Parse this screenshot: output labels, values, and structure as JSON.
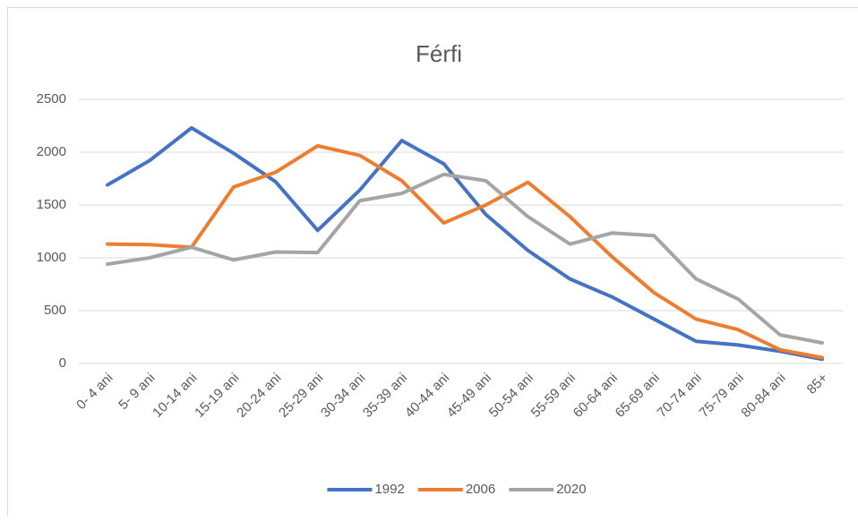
{
  "chart_data": {
    "type": "line",
    "title": "Férfi",
    "categories": [
      "0- 4 ani",
      "5- 9 ani",
      "10-14 ani",
      "15-19 ani",
      "20-24 ani",
      "25-29 ani",
      "30-34 ani",
      "35-39 ani",
      "40-44 ani",
      "45-49 ani",
      "50-54 ani",
      "55-59 ani",
      "60-64 ani",
      "65-69 ani",
      "70-74 ani",
      "75-79 ani",
      "80-84 ani",
      "85+"
    ],
    "series": [
      {
        "name": "1992",
        "color": "#4472c4",
        "values": [
          1690,
          1920,
          2230,
          1990,
          1720,
          1260,
          1640,
          2110,
          1890,
          1410,
          1070,
          800,
          630,
          420,
          210,
          175,
          115,
          40
        ]
      },
      {
        "name": "2006",
        "color": "#ed7d31",
        "values": [
          1130,
          1125,
          1100,
          1670,
          1810,
          2060,
          1970,
          1730,
          1330,
          1500,
          1715,
          1390,
          1010,
          670,
          420,
          320,
          130,
          55
        ]
      },
      {
        "name": "2020",
        "color": "#a5a5a5",
        "values": [
          940,
          1000,
          1100,
          980,
          1055,
          1050,
          1540,
          1610,
          1790,
          1730,
          1390,
          1130,
          1235,
          1210,
          800,
          610,
          270,
          195
        ]
      }
    ],
    "ylim": [
      0,
      2500
    ],
    "yticks": [
      0,
      500,
      1000,
      1500,
      2000,
      2500
    ],
    "grid": true,
    "legend": "bottom"
  }
}
